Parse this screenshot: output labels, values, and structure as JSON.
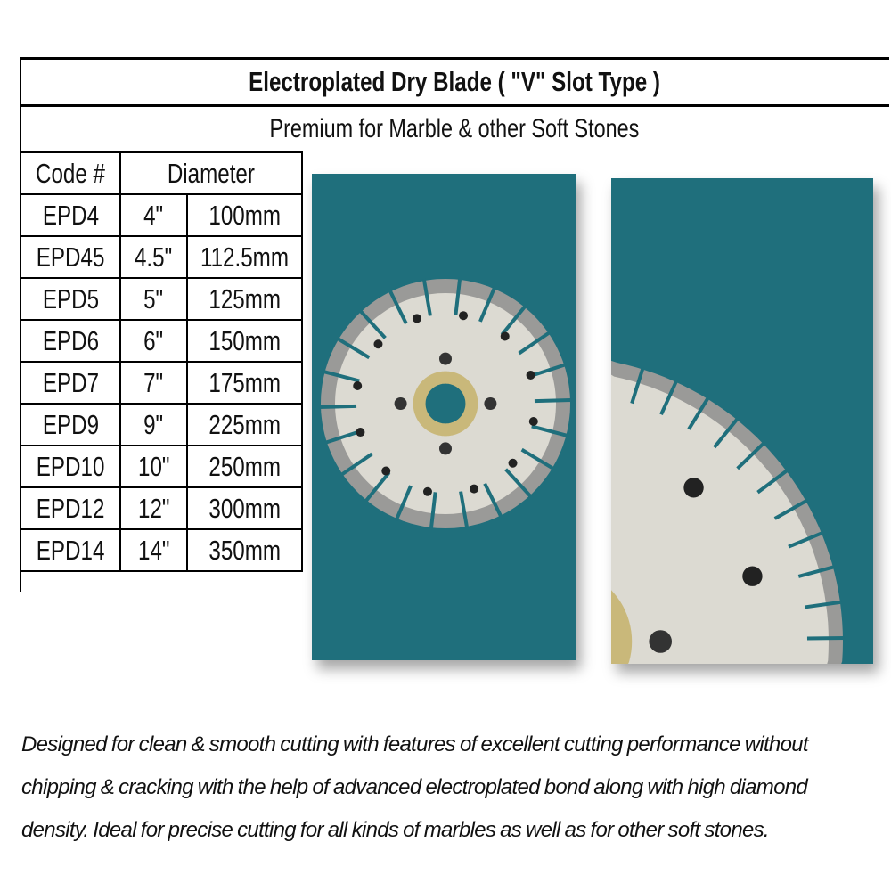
{
  "header": {
    "title": "Electroplated Dry Blade ( \"V\" Slot Type )",
    "subtitle": "Premium for Marble & other Soft Stones"
  },
  "table": {
    "columns": [
      "Code #",
      "Diameter"
    ],
    "rows": [
      [
        "EPD4",
        "4\"",
        "100mm"
      ],
      [
        "EPD45",
        "4.5\"",
        "112.5mm"
      ],
      [
        "EPD5",
        "5\"",
        "125mm"
      ],
      [
        "EPD6",
        "6\"",
        "150mm"
      ],
      [
        "EPD7",
        "7\"",
        "175mm"
      ],
      [
        "EPD9",
        "9\"",
        "225mm"
      ],
      [
        "EPD10",
        "10\"",
        "250mm"
      ],
      [
        "EPD12",
        "12\"",
        "300mm"
      ],
      [
        "EPD14",
        "14\"",
        "350mm"
      ]
    ]
  },
  "description": {
    "lines": [
      "Designed for clean & smooth cutting with features of excellent cutting performance without",
      "chipping & cracking with the help of advanced electroplated bond along with high diamond",
      "density. Ideal for precise cutting for all kinds of marbles as well as for other soft stones."
    ]
  },
  "colors": {
    "photo_background": "#1f6f7c",
    "blade": "#dcdad2",
    "segment": "#9a9a98",
    "flange": "#c9b87a"
  }
}
